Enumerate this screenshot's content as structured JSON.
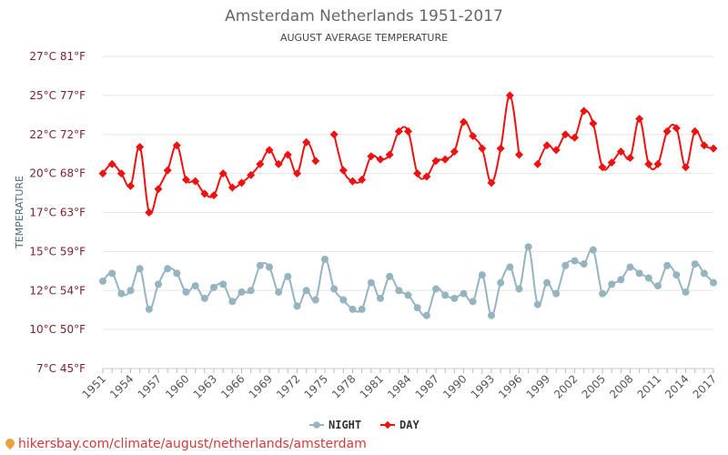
{
  "chart_data": {
    "type": "line",
    "title": "Amsterdam Netherlands 1951-2017",
    "subtitle": "AUGUST AVERAGE TEMPERATURE",
    "ylabel": "TEMPERATURE",
    "ylim": [
      7.5,
      27.5
    ],
    "yticks": [
      {
        "value": 7.5,
        "label": "7°C 45°F"
      },
      {
        "value": 10,
        "label": "10°C 50°F"
      },
      {
        "value": 12.5,
        "label": "12°C 54°F"
      },
      {
        "value": 15,
        "label": "15°C 59°F"
      },
      {
        "value": 17.5,
        "label": "17°C 63°F"
      },
      {
        "value": 20,
        "label": "20°C 68°F"
      },
      {
        "value": 22.5,
        "label": "22°C 72°F"
      },
      {
        "value": 25,
        "label": "25°C 77°F"
      },
      {
        "value": 27.5,
        "label": "27°C 81°F"
      }
    ],
    "x_tick_labels": [
      "1951",
      "1954",
      "1957",
      "1960",
      "1963",
      "1966",
      "1969",
      "1972",
      "1975",
      "1978",
      "1981",
      "1984",
      "1987",
      "1990",
      "1993",
      "1996",
      "1999",
      "2002",
      "2005",
      "2008",
      "2011",
      "2014",
      "2017"
    ],
    "x": [
      1951,
      1952,
      1953,
      1954,
      1955,
      1956,
      1957,
      1958,
      1959,
      1960,
      1961,
      1962,
      1963,
      1964,
      1965,
      1966,
      1967,
      1968,
      1969,
      1970,
      1971,
      1972,
      1973,
      1974,
      1975,
      1976,
      1977,
      1978,
      1979,
      1980,
      1981,
      1982,
      1983,
      1984,
      1985,
      1986,
      1987,
      1988,
      1989,
      1990,
      1991,
      1992,
      1993,
      1994,
      1995,
      1996,
      1997,
      1998,
      1999,
      2000,
      2001,
      2002,
      2003,
      2004,
      2005,
      2006,
      2007,
      2008,
      2009,
      2010,
      2011,
      2012,
      2013,
      2014,
      2015,
      2016,
      2017
    ],
    "grid": true,
    "legend_position": "bottom",
    "series": [
      {
        "name": "NIGHT",
        "color": "#95b4c0",
        "values": [
          13.1,
          13.6,
          12.3,
          12.5,
          13.9,
          11.3,
          12.9,
          13.9,
          13.6,
          12.4,
          12.8,
          12.0,
          12.7,
          12.9,
          11.8,
          12.4,
          12.5,
          14.1,
          14.0,
          12.4,
          13.4,
          11.5,
          12.5,
          11.9,
          14.5,
          12.6,
          11.9,
          11.3,
          11.3,
          13.0,
          12.0,
          13.4,
          12.5,
          12.2,
          11.4,
          10.9,
          12.6,
          12.2,
          12.0,
          12.3,
          11.8,
          13.5,
          10.9,
          13.0,
          14.0,
          12.6,
          15.3,
          11.6,
          13.0,
          12.3,
          14.1,
          14.4,
          14.2,
          15.1,
          12.3,
          12.9,
          13.2,
          14.0,
          13.6,
          13.3,
          12.8,
          14.1,
          13.5,
          12.4,
          14.2,
          13.6,
          13.0
        ]
      },
      {
        "name": "DAY",
        "color": "#ee1111",
        "values": [
          20.0,
          20.6,
          20.0,
          19.2,
          21.7,
          17.5,
          19.0,
          20.2,
          21.8,
          19.6,
          19.5,
          18.7,
          18.6,
          20.0,
          19.1,
          19.4,
          19.9,
          20.6,
          21.5,
          20.6,
          21.2,
          20.0,
          22.0,
          20.8,
          null,
          22.5,
          20.2,
          19.5,
          19.6,
          21.1,
          20.9,
          21.2,
          22.7,
          22.7,
          20.0,
          19.8,
          20.8,
          20.9,
          21.4,
          23.3,
          22.4,
          21.6,
          19.4,
          21.6,
          25.0,
          21.2,
          null,
          20.6,
          21.8,
          21.5,
          22.5,
          22.3,
          24.0,
          23.2,
          20.4,
          20.7,
          21.4,
          21.0,
          23.5,
          20.6,
          20.6,
          22.7,
          22.9,
          20.4,
          22.7,
          21.8,
          21.6
        ]
      }
    ]
  },
  "footer": {
    "text": "hikersbay.com/climate/august/netherlands/amsterdam",
    "pin_icon": "location-pin-icon"
  }
}
